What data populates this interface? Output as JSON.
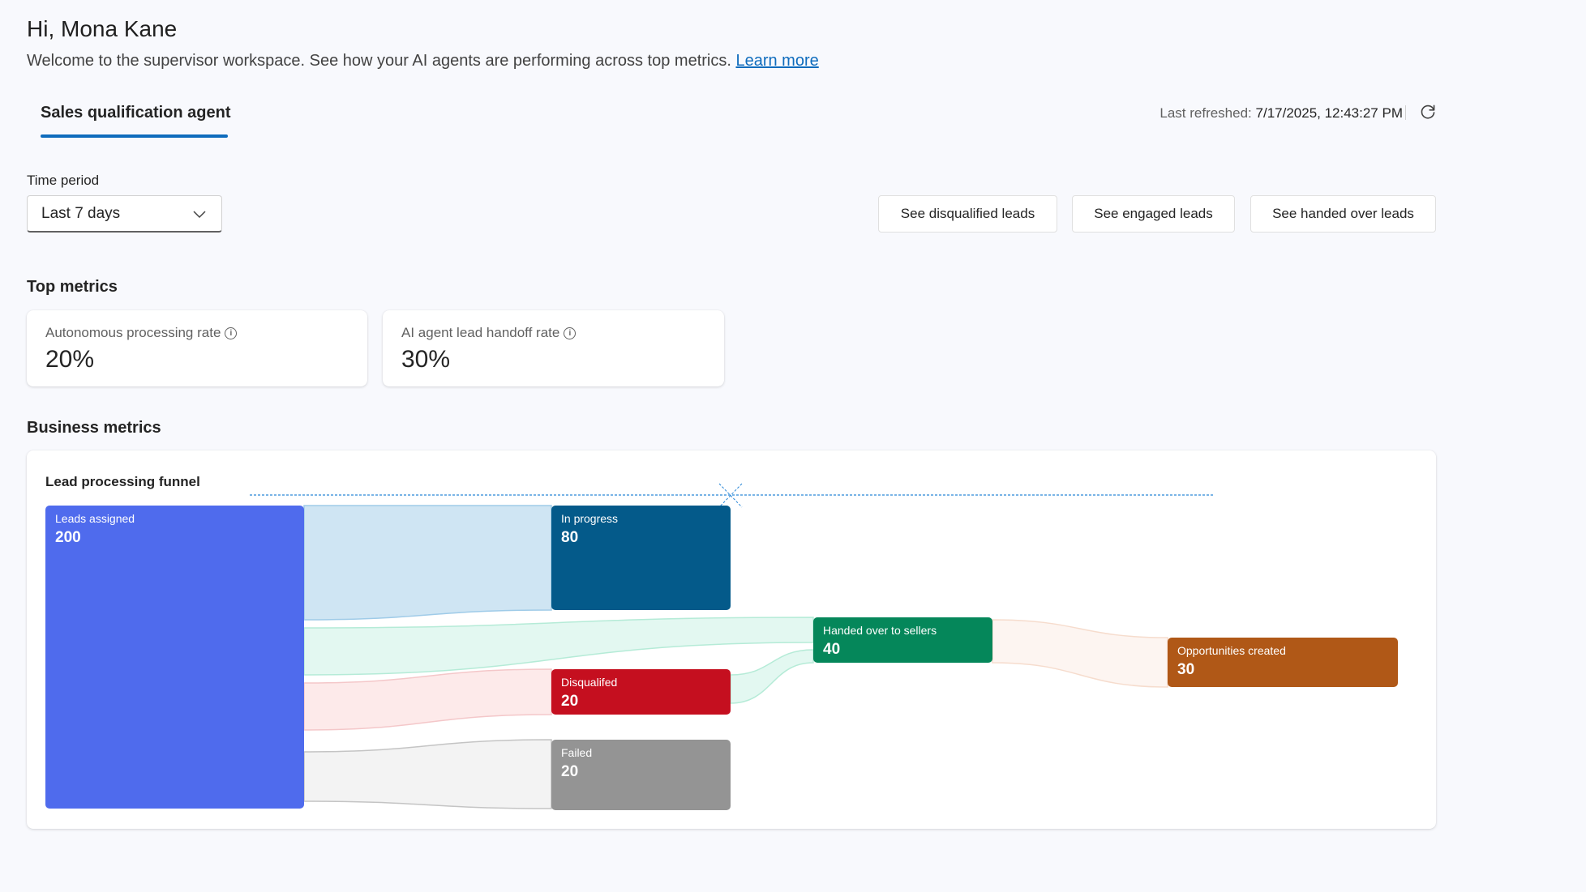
{
  "header": {
    "greeting": "Hi, Mona Kane",
    "welcome": "Welcome to the supervisor workspace. See how your AI agents are performing across top metrics.",
    "learn_more": "Learn more"
  },
  "tabs": [
    {
      "label": "Sales qualification agent",
      "selected": true
    }
  ],
  "refresh": {
    "label": "Last refreshed:",
    "value": "7/17/2025, 12:43:27 PM",
    "icon": "refresh-icon"
  },
  "time_period": {
    "label": "Time period",
    "value": "Last 7 days"
  },
  "actions": [
    "See disqualified leads",
    "See engaged leads",
    "See handed over leads"
  ],
  "top_metrics": {
    "title": "Top metrics",
    "cards": [
      {
        "label": "Autonomous processing rate",
        "value": "20%"
      },
      {
        "label": "AI agent lead handoff rate",
        "value": "30%"
      }
    ]
  },
  "business_metrics": {
    "title": "Business metrics",
    "funnel": {
      "title": "Lead processing funnel",
      "nodes": [
        {
          "label": "Leads assigned",
          "value": "200",
          "color": "#4f6bed"
        },
        {
          "label": "In progress",
          "value": "80",
          "color": "#045a8a"
        },
        {
          "label": "Handed over to sellers",
          "value": "40",
          "color": "#05875a"
        },
        {
          "label": "Disqualifed",
          "value": "20",
          "color": "#c50f1f"
        },
        {
          "label": "Failed",
          "value": "20",
          "color": "#949494"
        },
        {
          "label": "Opportunities created",
          "value": "30",
          "color": "#b05817"
        }
      ],
      "links": [
        {
          "source": "Leads assigned",
          "target": "In progress"
        },
        {
          "source": "Leads assigned",
          "target": "Handed over to sellers"
        },
        {
          "source": "Leads assigned",
          "target": "Disqualifed"
        },
        {
          "source": "Leads assigned",
          "target": "Failed"
        },
        {
          "source": "Disqualifed",
          "target": "Handed over to sellers"
        },
        {
          "source": "Handed over to sellers",
          "target": "Opportunities created"
        }
      ]
    }
  }
}
